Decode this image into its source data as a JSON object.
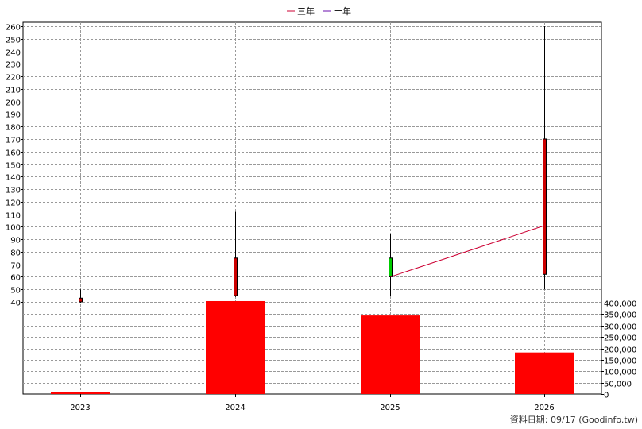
{
  "chart_data": {
    "type": "candlestick-volume",
    "legend": [
      {
        "label": "三年",
        "color": "#cc0033"
      },
      {
        "label": "十年",
        "color": "#6a0dad"
      }
    ],
    "categories": [
      "2023",
      "2024",
      "2025",
      "2026"
    ],
    "price_axis": {
      "min": 40,
      "max": 260,
      "step": 10,
      "position": "left",
      "ticks": [
        "40",
        "50",
        "60",
        "70",
        "80",
        "90",
        "100",
        "110",
        "120",
        "130",
        "140",
        "150",
        "160",
        "170",
        "180",
        "190",
        "200",
        "210",
        "220",
        "230",
        "240",
        "250",
        "260"
      ]
    },
    "volume_axis": {
      "min": 0,
      "max": 400000,
      "step": 50000,
      "position": "right",
      "ticks": [
        "0",
        "50,000",
        "100,000",
        "150,000",
        "200,000",
        "250,000",
        "300,000",
        "350,000",
        "400,000"
      ]
    },
    "candles": [
      {
        "x": "2023",
        "open": 43,
        "close": 40,
        "high": 50,
        "low": 39,
        "color": "#cc0000"
      },
      {
        "x": "2024",
        "open": 45,
        "close": 75,
        "high": 112,
        "low": 44,
        "color": "#cc0000"
      },
      {
        "x": "2025",
        "open": 75,
        "close": 60,
        "high": 94,
        "low": 45,
        "color": "#00cc00"
      },
      {
        "x": "2026",
        "open": 62,
        "close": 170,
        "high": 260,
        "low": 50,
        "color": "#cc0000"
      }
    ],
    "volume": [
      {
        "x": "2023",
        "value": 10000
      },
      {
        "x": "2024",
        "value": 407000
      },
      {
        "x": "2025",
        "value": 344000
      },
      {
        "x": "2026",
        "value": 182000
      }
    ],
    "volume_color": "#ff0000",
    "ma_three_year": [
      {
        "x": "2025",
        "value": 60
      },
      {
        "x": "2026",
        "value": 101
      }
    ],
    "grid": true
  },
  "footer": "資料日期: 09/17  (Goodinfo.tw)"
}
